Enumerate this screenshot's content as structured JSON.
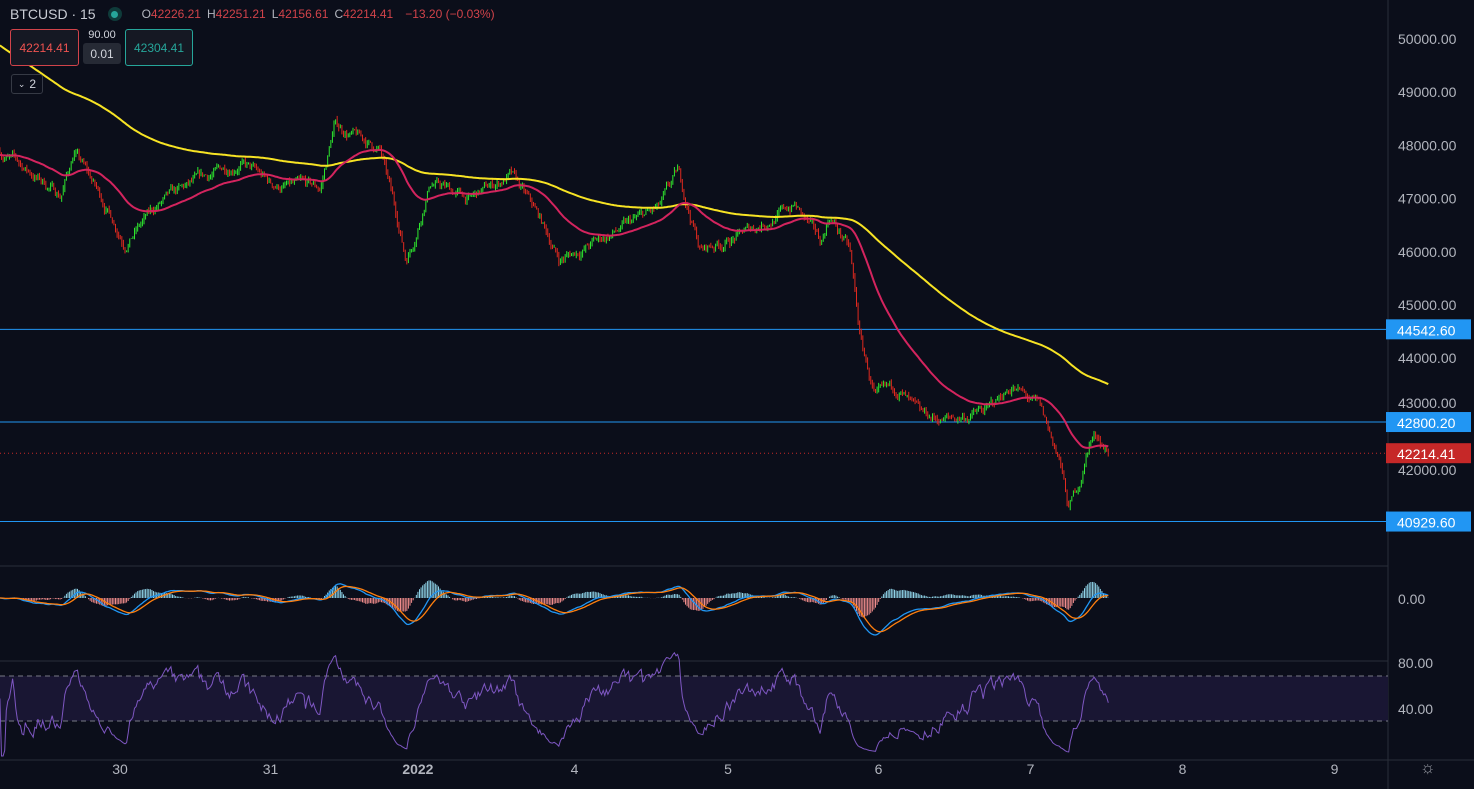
{
  "header": {
    "symbol": "BTCUSD · 15",
    "open_label": "O",
    "open": "42226.21",
    "high_label": "H",
    "high": "42251.21",
    "low_label": "L",
    "low": "42156.61",
    "close_label": "C",
    "close": "42214.41",
    "change": "−13.20 (−0.03%)"
  },
  "trade": {
    "sell_price": "42214.41",
    "spread": "90.00",
    "quantity": "0.01",
    "buy_price": "42304.41"
  },
  "collapse": {
    "count": "2"
  },
  "colors": {
    "bg": "#0b0e1a",
    "up": "#2ee62e",
    "down": "#e0291f",
    "ma_fast": "#d3245e",
    "ma_slow": "#f7e324",
    "hline": "#2196f3",
    "last": "#c62828"
  },
  "chart_data": {
    "type": "candlestick",
    "symbol": "BTCUSD",
    "interval_minutes": 15,
    "x_unit": "days since '30' tick",
    "price_ylim": [
      40200,
      50600
    ],
    "price_ticks": [
      "50000.00",
      "49000.00",
      "48000.00",
      "47000.00",
      "46000.00",
      "45000.00",
      "44000.00",
      "43000.00",
      "42000.00"
    ],
    "price_tick_values": [
      50000,
      49000,
      48000,
      47000,
      46000,
      45000,
      44000,
      43000,
      42000
    ],
    "time_ticks": [
      {
        "label": "30",
        "day": 0
      },
      {
        "label": "31",
        "day": 0.99
      },
      {
        "label": "2022",
        "day": 1.96
      },
      {
        "label": "4",
        "day": 2.99
      },
      {
        "label": "5",
        "day": 4.0
      },
      {
        "label": "6",
        "day": 4.99
      },
      {
        "label": "7",
        "day": 5.99
      },
      {
        "label": "8",
        "day": 6.99
      },
      {
        "label": "9",
        "day": 7.99
      }
    ],
    "close_path": [
      [
        -0.79,
        47900
      ],
      [
        -0.39,
        47070
      ],
      [
        -0.3,
        47900
      ],
      [
        0.03,
        46220
      ],
      [
        0.26,
        46880
      ],
      [
        0.79,
        47720
      ],
      [
        0.99,
        47250
      ],
      [
        1.32,
        47160
      ],
      [
        1.41,
        48380
      ],
      [
        1.71,
        47910
      ],
      [
        1.84,
        46410
      ],
      [
        1.88,
        45850
      ],
      [
        1.94,
        46310
      ],
      [
        2.04,
        47350
      ],
      [
        2.3,
        46970
      ],
      [
        2.57,
        47440
      ],
      [
        2.76,
        46600
      ],
      [
        2.89,
        45850
      ],
      [
        3.29,
        46410
      ],
      [
        3.55,
        46790
      ],
      [
        3.67,
        47440
      ],
      [
        3.82,
        46030
      ],
      [
        4.08,
        46310
      ],
      [
        4.44,
        46880
      ],
      [
        4.61,
        46130
      ],
      [
        4.67,
        46690
      ],
      [
        4.8,
        46030
      ],
      [
        4.87,
        44340
      ],
      [
        4.97,
        43210
      ],
      [
        5.13,
        43400
      ],
      [
        5.26,
        42840
      ],
      [
        5.46,
        42840
      ],
      [
        5.72,
        43030
      ],
      [
        5.87,
        43500
      ],
      [
        6.05,
        43030
      ],
      [
        6.18,
        42090
      ],
      [
        6.24,
        41150
      ],
      [
        6.32,
        41710
      ],
      [
        6.38,
        42460
      ],
      [
        6.43,
        42560
      ],
      [
        6.51,
        42214
      ]
    ],
    "horizontal_lines": [
      {
        "price": 44542.6,
        "label": "44542.60"
      },
      {
        "price": 42800.2,
        "label": "42800.20"
      },
      {
        "price": 40929.6,
        "label": "40929.60"
      }
    ],
    "last_price": {
      "price": 42214.41,
      "label": "42214.41"
    },
    "moving_averages": [
      {
        "name": "fast EMA",
        "color": "#d3245e"
      },
      {
        "name": "slow EMA",
        "color": "#f7e324"
      }
    ],
    "macd": {
      "zero_label": "0.00"
    },
    "rsi": {
      "ticks": [
        {
          "label": "80.00",
          "value": 80
        },
        {
          "label": "40.00",
          "value": 40
        }
      ],
      "bands": [
        70,
        30
      ]
    }
  }
}
